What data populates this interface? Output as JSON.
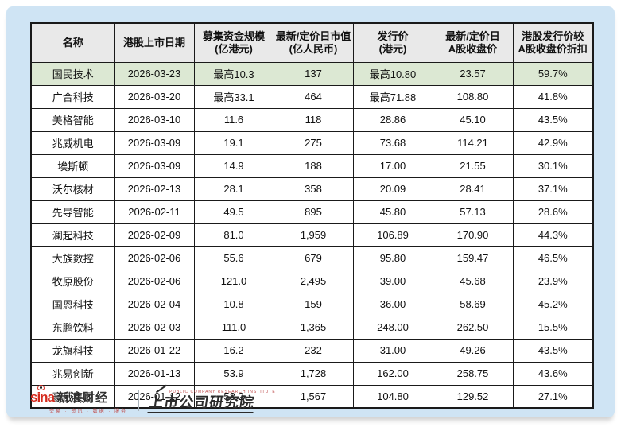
{
  "colors": {
    "page_background": "#ffffff",
    "panel_background": "#cfe4f4",
    "header_background": "#e9e9e9",
    "highlight_row_background": "#dce8d3",
    "table_border": "#1a1a1a",
    "text": "#111111",
    "sina_red": "#d52b1e"
  },
  "chart_data": {
    "type": "table",
    "columns": [
      "名称",
      "港股上市日期",
      "募集资金规模\n(亿港元)",
      "最新/定价日市值\n(亿人民币)",
      "发行价\n(港元)",
      "最新/定价日\nA股收盘价",
      "港股发行价较\nA股收盘价折扣"
    ],
    "rows": [
      [
        "国民技术",
        "2026-03-23",
        "最高10.3",
        "137",
        "最高10.80",
        "23.57",
        "59.7%"
      ],
      [
        "广合科技",
        "2026-03-20",
        "最高33.1",
        "464",
        "最高71.88",
        "108.80",
        "41.8%"
      ],
      [
        "美格智能",
        "2026-03-10",
        "11.6",
        "118",
        "28.86",
        "45.10",
        "43.5%"
      ],
      [
        "兆威机电",
        "2026-03-09",
        "19.1",
        "275",
        "73.68",
        "114.21",
        "42.9%"
      ],
      [
        "埃斯顿",
        "2026-03-09",
        "14.9",
        "188",
        "17.00",
        "21.55",
        "30.1%"
      ],
      [
        "沃尔核材",
        "2026-02-13",
        "28.1",
        "358",
        "20.09",
        "28.41",
        "37.1%"
      ],
      [
        "先导智能",
        "2026-02-11",
        "49.5",
        "895",
        "45.80",
        "57.13",
        "28.6%"
      ],
      [
        "澜起科技",
        "2026-02-09",
        "81.0",
        "1,959",
        "106.89",
        "170.90",
        "44.3%"
      ],
      [
        "大族数控",
        "2026-02-06",
        "55.6",
        "679",
        "95.80",
        "159.47",
        "46.5%"
      ],
      [
        "牧原股份",
        "2026-02-06",
        "121.0",
        "2,495",
        "39.00",
        "45.68",
        "23.9%"
      ],
      [
        "国恩科技",
        "2026-02-04",
        "10.8",
        "159",
        "36.00",
        "58.69",
        "45.2%"
      ],
      [
        "东鹏饮料",
        "2026-02-03",
        "111.0",
        "1,365",
        "248.00",
        "262.50",
        "15.5%"
      ],
      [
        "龙旗科技",
        "2026-01-22",
        "16.2",
        "232",
        "31.00",
        "49.26",
        "43.5%"
      ],
      [
        "兆易创新",
        "2026-01-13",
        "53.9",
        "1,728",
        "162.00",
        "258.75",
        "43.6%"
      ],
      [
        "豪威集团",
        "2026-01-12",
        "53.2",
        "1,567",
        "104.80",
        "129.52",
        "27.1%"
      ]
    ],
    "highlight_row_index": 0,
    "highlight_row_name": "国民技术"
  },
  "footer": {
    "sina_logo_text": "sina",
    "sina_brand": "新浪财经",
    "sina_tagline": "交易 · 资讯 · 数据 · 服务",
    "institute_name": "上市公司研究院",
    "institute_subtitle": "PUBLIC COMPANY RESEARCH INSTITUTE"
  }
}
